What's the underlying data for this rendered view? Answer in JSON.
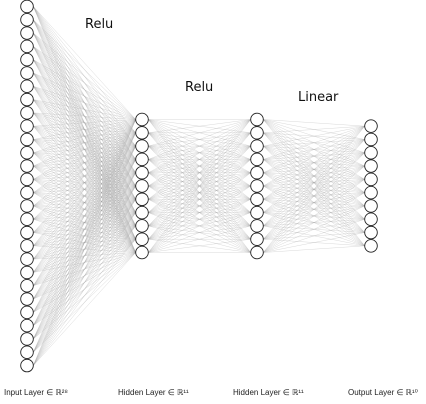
{
  "diagram": {
    "layers": [
      {
        "caption": "Input Layer ∈ ℝ²⁸",
        "neurons": 28
      },
      {
        "caption": "Hidden Layer ∈ ℝ¹¹",
        "neurons": 11
      },
      {
        "caption": "Hidden Layer ∈ ℝ¹¹",
        "neurons": 11
      },
      {
        "caption": "Output Layer ∈ ℝ¹⁰",
        "neurons": 10
      }
    ],
    "activations": [
      "Relu",
      "Relu",
      "Linear"
    ],
    "colors": {
      "neuron_stroke": "#222222",
      "neuron_fill": "#ffffff",
      "edge": "#9a9a9a"
    }
  }
}
